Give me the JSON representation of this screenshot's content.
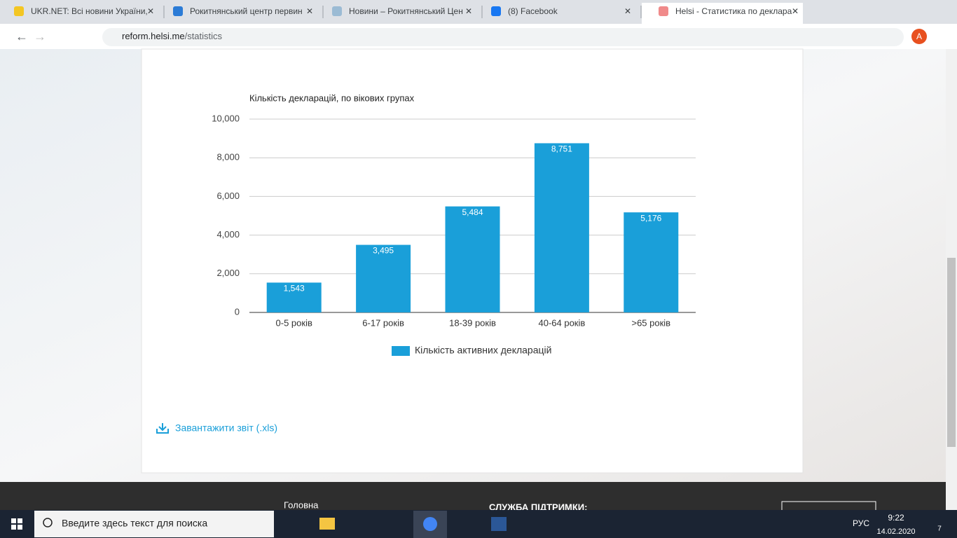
{
  "browser": {
    "tabs": [
      "UKR.NET: Всі новини України,",
      "Рокитнянський центр первин",
      "Новини – Рокитнянський Цен",
      "(8) Facebook",
      "Helsi - Статистика по деклара"
    ],
    "url_host": "reform.helsi.me",
    "url_path": "/statistics",
    "profile": "A"
  },
  "chart_data": {
    "type": "bar",
    "title": "Кількість декларацій, по вікових групах",
    "categories": [
      "0-5 років",
      "6-17 років",
      "18-39 років",
      "40-64 років",
      ">65 років"
    ],
    "series": [
      {
        "name": "Кількість активних декларацій",
        "color": "#1a9fd9",
        "values": [
          1543,
          3495,
          5484,
          8751,
          5176
        ],
        "value_labels": [
          "1,543",
          "3,495",
          "5,484",
          "8,751",
          "5,176"
        ]
      }
    ],
    "ylim": [
      0,
      10000
    ],
    "yticks": [
      0,
      {
        "value": 2000,
        "label": "2,000"
      },
      {
        "value": 4000,
        "label": "4,000"
      },
      {
        "value": 6000,
        "label": "6,000"
      },
      {
        "value": 8000,
        "label": "8,000"
      },
      {
        "value": 10000,
        "label": "10,000"
      }
    ],
    "grid": true,
    "legend": "bottom"
  },
  "download": "Завантажити звіт (.xls)",
  "footer": {
    "nav": "Головна",
    "support": "СЛУЖБА ПІДТРИМКИ:"
  },
  "taskbar": {
    "search": "Введите здесь текст для поиска",
    "lang": "РУС",
    "time": "9:22",
    "date": "14.02.2020",
    "notifications": "7"
  }
}
